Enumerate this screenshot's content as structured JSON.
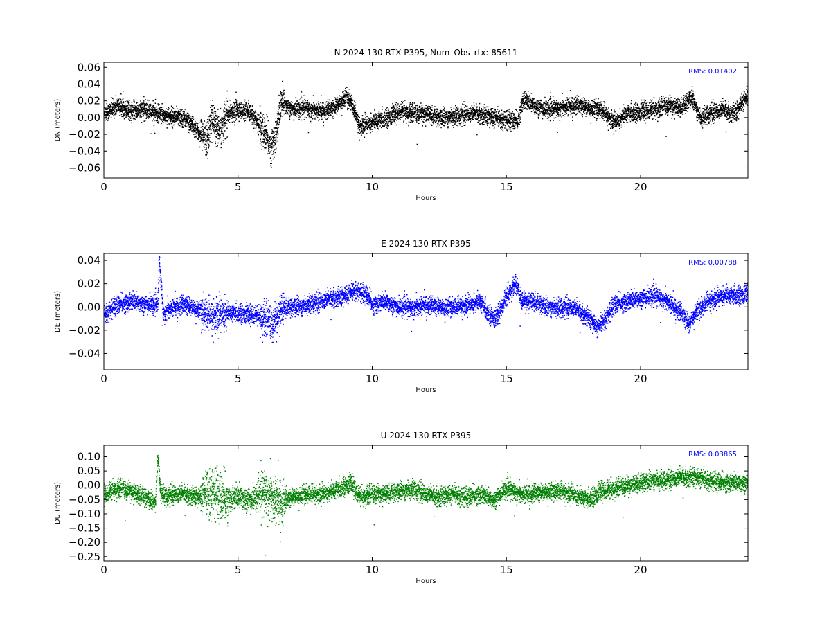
{
  "chart_data": [
    {
      "type": "scatter",
      "title": "N 2024 130 RTX  P395, Num_Obs_rtx: 85611",
      "xlabel": "Hours",
      "ylabel": "DN (meters)",
      "xlim": [
        0,
        24
      ],
      "ylim": [
        -0.072,
        0.066
      ],
      "xticks": [
        0,
        5,
        10,
        15,
        20
      ],
      "xtick_labels": [
        "0",
        "5",
        "10",
        "15",
        "20"
      ],
      "yticks": [
        -0.06,
        -0.04,
        -0.02,
        0.0,
        0.02,
        0.04,
        0.06
      ],
      "ytick_labels": [
        "−0.06",
        "−0.04",
        "−0.02",
        "0.00",
        "0.02",
        "0.04",
        "0.06"
      ],
      "annotation": "RMS:  0.01402",
      "grid": false,
      "color": "#000000",
      "annotation_color": "#0000ff",
      "series": [
        {
          "x": [
            0.0,
            0.5,
            1.0,
            1.5,
            2.0,
            2.5,
            3.0,
            3.3,
            3.6,
            3.8,
            4.0,
            4.3,
            4.6,
            5.0,
            5.5,
            6.0,
            6.2,
            6.4,
            6.6,
            7.0,
            7.5,
            8.0,
            8.5,
            9.0,
            9.2,
            9.5,
            10.0,
            10.5,
            11.0,
            11.5,
            12.0,
            12.5,
            13.0,
            13.5,
            14.0,
            14.5,
            15.0,
            15.4,
            15.6,
            16.0,
            16.5,
            17.0,
            17.5,
            18.0,
            18.5,
            19.0,
            19.5,
            20.0,
            20.5,
            21.0,
            21.5,
            21.9,
            22.2,
            22.5,
            23.0,
            23.5,
            23.8,
            24.0
          ],
          "y": [
            0.005,
            0.015,
            0.008,
            0.01,
            0.005,
            0.002,
            0.0,
            -0.01,
            -0.02,
            -0.025,
            0.0,
            -0.015,
            0.005,
            0.01,
            0.005,
            -0.02,
            -0.035,
            -0.02,
            0.02,
            0.01,
            0.012,
            0.008,
            0.01,
            0.025,
            0.02,
            -0.01,
            -0.005,
            0.0,
            0.008,
            0.005,
            0.005,
            0.0,
            0.002,
            0.005,
            0.005,
            0.0,
            -0.002,
            -0.005,
            0.022,
            0.015,
            0.01,
            0.012,
            0.015,
            0.012,
            0.01,
            -0.005,
            0.005,
            0.008,
            0.01,
            0.015,
            0.012,
            0.025,
            0.0,
            0.005,
            0.01,
            0.005,
            0.02,
            0.025
          ]
        }
      ]
    },
    {
      "type": "scatter",
      "title": "E 2024 130 RTX  P395",
      "xlabel": "Hours",
      "ylabel": "DE (meters)",
      "xlim": [
        0,
        24
      ],
      "ylim": [
        -0.054,
        0.046
      ],
      "xticks": [
        0,
        5,
        10,
        15,
        20
      ],
      "xtick_labels": [
        "0",
        "5",
        "10",
        "15",
        "20"
      ],
      "yticks": [
        -0.04,
        -0.02,
        0.0,
        0.02,
        0.04
      ],
      "ytick_labels": [
        "−0.04",
        "−0.02",
        "0.00",
        "0.02",
        "0.04"
      ],
      "annotation": "RMS:  0.00788",
      "grid": false,
      "color": "#0000ff",
      "annotation_color": "#0000ff",
      "series": [
        {
          "x": [
            0.0,
            0.5,
            1.0,
            1.5,
            2.0,
            2.05,
            2.2,
            2.5,
            3.0,
            3.5,
            4.0,
            4.5,
            5.0,
            5.5,
            6.0,
            6.3,
            6.6,
            7.0,
            7.5,
            8.0,
            8.5,
            9.0,
            9.4,
            9.8,
            10.0,
            10.5,
            11.0,
            11.5,
            12.0,
            12.5,
            13.0,
            13.5,
            14.0,
            14.3,
            14.6,
            15.0,
            15.3,
            15.6,
            16.0,
            16.5,
            17.0,
            17.5,
            18.0,
            18.4,
            18.8,
            19.0,
            19.5,
            20.0,
            20.5,
            21.0,
            21.5,
            21.8,
            22.0,
            22.5,
            23.0,
            23.5,
            24.0
          ],
          "y": [
            -0.005,
            0.002,
            0.005,
            0.003,
            0.002,
            0.04,
            -0.005,
            0.0,
            0.002,
            -0.002,
            -0.008,
            -0.005,
            -0.005,
            -0.006,
            -0.01,
            -0.015,
            -0.002,
            0.0,
            0.002,
            0.005,
            0.008,
            0.01,
            0.015,
            0.01,
            0.002,
            0.005,
            0.0,
            0.0,
            0.002,
            0.0,
            0.0,
            0.002,
            0.005,
            -0.005,
            -0.01,
            0.01,
            0.02,
            0.005,
            0.005,
            0.0,
            0.0,
            0.0,
            -0.008,
            -0.018,
            -0.005,
            0.002,
            0.005,
            0.008,
            0.01,
            0.005,
            -0.005,
            -0.015,
            -0.005,
            0.005,
            0.01,
            0.01,
            0.012
          ]
        }
      ]
    },
    {
      "type": "scatter",
      "title": "U 2024 130 RTX  P395",
      "xlabel": "Hours",
      "ylabel": "DU (meters)",
      "xlim": [
        0,
        24
      ],
      "ylim": [
        -0.265,
        0.14
      ],
      "xticks": [
        0,
        5,
        10,
        15,
        20
      ],
      "xtick_labels": [
        "0",
        "5",
        "10",
        "15",
        "20"
      ],
      "yticks": [
        -0.25,
        -0.2,
        -0.15,
        -0.1,
        -0.05,
        0.0,
        0.05,
        0.1
      ],
      "ytick_labels": [
        "−0.25",
        "−0.20",
        "−0.15",
        "−0.10",
        "−0.05",
        "0.00",
        "0.05",
        "0.10"
      ],
      "annotation": "RMS:  0.03865",
      "grid": false,
      "color": "#008000",
      "annotation_color": "#0000ff",
      "series": [
        {
          "x": [
            0.0,
            0.5,
            1.0,
            1.5,
            1.9,
            2.0,
            2.1,
            2.3,
            2.5,
            3.0,
            3.5,
            4.0,
            4.5,
            5.0,
            5.5,
            6.0,
            6.3,
            6.6,
            7.0,
            7.5,
            8.0,
            8.5,
            9.0,
            9.2,
            9.5,
            10.0,
            10.5,
            11.0,
            11.5,
            12.0,
            12.5,
            13.0,
            13.5,
            14.0,
            14.5,
            15.0,
            15.5,
            16.0,
            16.5,
            17.0,
            17.5,
            18.0,
            18.5,
            19.0,
            19.5,
            20.0,
            20.5,
            21.0,
            21.5,
            22.0,
            22.5,
            23.0,
            23.5,
            24.0
          ],
          "y": [
            -0.03,
            -0.01,
            -0.02,
            -0.04,
            -0.06,
            0.1,
            -0.02,
            -0.04,
            -0.03,
            -0.03,
            -0.04,
            -0.02,
            -0.05,
            -0.04,
            -0.05,
            -0.02,
            -0.05,
            -0.06,
            -0.04,
            -0.03,
            -0.03,
            -0.02,
            0.0,
            0.01,
            -0.04,
            -0.03,
            -0.03,
            -0.02,
            -0.01,
            -0.03,
            -0.04,
            -0.03,
            -0.04,
            -0.03,
            -0.05,
            -0.01,
            -0.03,
            -0.03,
            -0.02,
            -0.02,
            -0.03,
            -0.05,
            -0.02,
            -0.01,
            0.0,
            0.01,
            0.02,
            0.02,
            0.03,
            0.03,
            0.02,
            0.01,
            0.01,
            0.01
          ]
        }
      ]
    }
  ]
}
